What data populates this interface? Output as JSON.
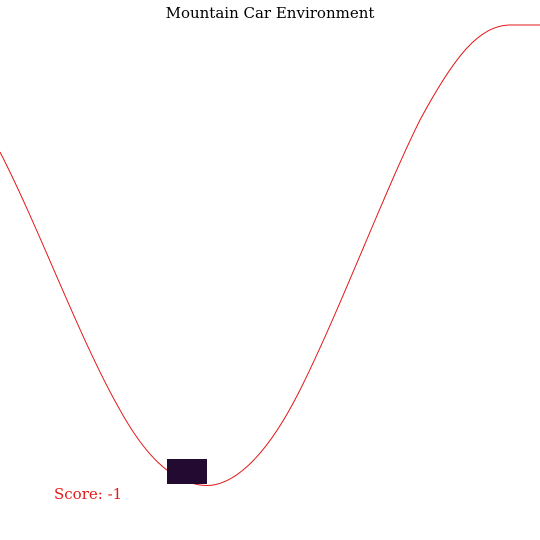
{
  "title": "Mountain Car Environment",
  "score_text": "Score: -1",
  "colors": {
    "background": "#ffffff",
    "track": "#e31a1a",
    "car": "#230a30",
    "score_text": "#e31a1a",
    "title_text": "#000000"
  },
  "environment": {
    "terrain": "sinusoidal-valley",
    "car_position_on_track": 0.35
  }
}
